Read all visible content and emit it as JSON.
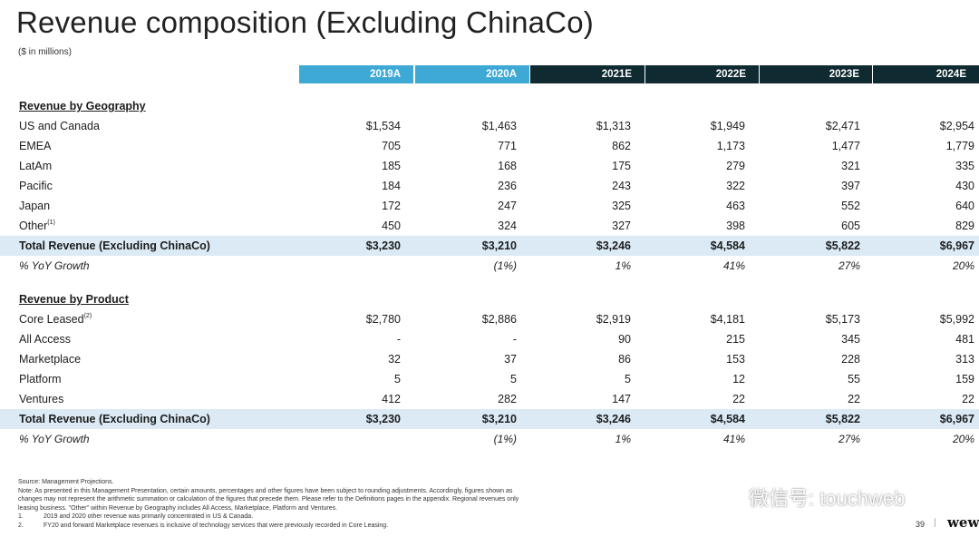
{
  "page": {
    "title": "Revenue composition (Excluding ChinaCo)",
    "units": "($ in millions)",
    "page_number": "39",
    "separator": "|",
    "logo_text": "wew"
  },
  "headers": [
    "2019A",
    "2020A",
    "2021E",
    "2022E",
    "2023E",
    "2024E"
  ],
  "geography": {
    "section_label": "Revenue by Geography",
    "rows": [
      {
        "label": "US and Canada",
        "sup": "",
        "values": [
          "$1,534",
          "$1,463",
          "$1,313",
          "$1,949",
          "$2,471",
          "$2,954"
        ]
      },
      {
        "label": "EMEA",
        "sup": "",
        "values": [
          "705",
          "771",
          "862",
          "1,173",
          "1,477",
          "1,779"
        ]
      },
      {
        "label": "LatAm",
        "sup": "",
        "values": [
          "185",
          "168",
          "175",
          "279",
          "321",
          "335"
        ]
      },
      {
        "label": "Pacific",
        "sup": "",
        "values": [
          "184",
          "236",
          "243",
          "322",
          "397",
          "430"
        ]
      },
      {
        "label": "Japan",
        "sup": "",
        "values": [
          "172",
          "247",
          "325",
          "463",
          "552",
          "640"
        ]
      },
      {
        "label": "Other",
        "sup": "(1)",
        "values": [
          "450",
          "324",
          "327",
          "398",
          "605",
          "829"
        ]
      }
    ],
    "total": {
      "label": "Total Revenue (Excluding ChinaCo)",
      "values": [
        "$3,230",
        "$3,210",
        "$3,246",
        "$4,584",
        "$5,822",
        "$6,967"
      ]
    },
    "growth": {
      "label": "% YoY Growth",
      "values": [
        "",
        "(1%)",
        "1%",
        "41%",
        "27%",
        "20%"
      ]
    }
  },
  "product": {
    "section_label": "Revenue by Product",
    "rows": [
      {
        "label": "Core Leased",
        "sup": "(2)",
        "values": [
          "$2,780",
          "$2,886",
          "$2,919",
          "$4,181",
          "$5,173",
          "$5,992"
        ]
      },
      {
        "label": "All Access",
        "sup": "",
        "values": [
          "-",
          "-",
          "90",
          "215",
          "345",
          "481"
        ]
      },
      {
        "label": "Marketplace",
        "sup": "",
        "values": [
          "32",
          "37",
          "86",
          "153",
          "228",
          "313"
        ]
      },
      {
        "label": "Platform",
        "sup": "",
        "values": [
          "5",
          "5",
          "5",
          "12",
          "55",
          "159"
        ]
      },
      {
        "label": "Ventures",
        "sup": "",
        "values": [
          "412",
          "282",
          "147",
          "22",
          "22",
          "22"
        ]
      }
    ],
    "total": {
      "label": "Total Revenue (Excluding ChinaCo)",
      "values": [
        "$3,230",
        "$3,210",
        "$3,246",
        "$4,584",
        "$5,822",
        "$6,967"
      ]
    },
    "growth": {
      "label": "% YoY Growth",
      "values": [
        "",
        "(1%)",
        "1%",
        "41%",
        "27%",
        "20%"
      ]
    }
  },
  "notes": {
    "source": "Source: Management Projections.",
    "note_line1": "Note: As presented in this Management Presentation, certain amounts, percentages and other figures have been subject to rounding adjustments. Accordingly, figures shown as",
    "note_line2": "changes may not represent the arithmetic summation or calculation of the figures that precede them. Please refer to the Definitions pages in the appendix. Regional revenues only",
    "note_line3": "leasing business. \"Other\" within Revenue by Geography includes All Access, Marketplace, Platform and Ventures.",
    "footnotes": [
      {
        "num": "1.",
        "text": "2019 and 2020 other revenue was primarily concentrated in US & Canada."
      },
      {
        "num": "2.",
        "text": "FY20 and forward Marketplace revenues is inclusive of technology services that were previously recorded in Core Leasing."
      }
    ]
  },
  "watermark": {
    "icon": "wechat-icon",
    "text": "微信号: touchweb"
  },
  "colors": {
    "actual_header": "#3fa9d6",
    "estimate_header": "#0f2a30",
    "total_band": "#dbeaf5"
  }
}
